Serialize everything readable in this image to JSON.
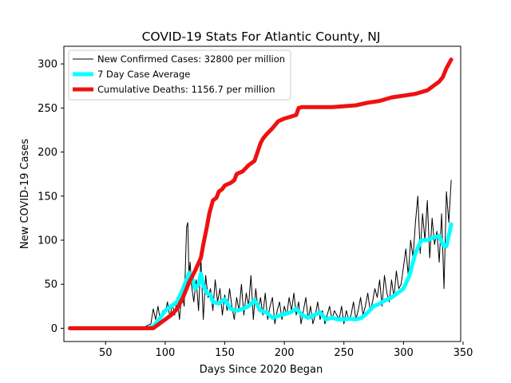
{
  "chart_data": {
    "type": "line",
    "title": "COVID-19 Stats For Atlantic County, NJ",
    "xlabel": "Days Since 2020 Began",
    "ylabel": "New COVID-19 Cases",
    "xlim": [
      15,
      348
    ],
    "ylim": [
      -15,
      320
    ],
    "xticks": [
      50,
      100,
      150,
      200,
      250,
      300,
      350
    ],
    "yticks": [
      0,
      50,
      100,
      150,
      200,
      250,
      300
    ],
    "grid": false,
    "legend_position": "top-left",
    "series": [
      {
        "name": "New Confirmed Cases: 32800 per million",
        "color": "#000000",
        "line_width": 1,
        "x": [
          20,
          70,
          80,
          88,
          90,
          92,
          94,
          96,
          98,
          100,
          102,
          104,
          106,
          108,
          110,
          112,
          114,
          116,
          118,
          119,
          120,
          121,
          122,
          124,
          126,
          128,
          130,
          132,
          134,
          136,
          138,
          140,
          142,
          144,
          146,
          148,
          150,
          152,
          154,
          156,
          158,
          160,
          162,
          164,
          166,
          168,
          170,
          172,
          174,
          176,
          178,
          180,
          182,
          184,
          186,
          188,
          190,
          192,
          194,
          196,
          198,
          200,
          202,
          204,
          206,
          208,
          210,
          212,
          214,
          216,
          218,
          220,
          222,
          224,
          226,
          228,
          230,
          232,
          234,
          236,
          238,
          240,
          242,
          244,
          246,
          248,
          250,
          252,
          254,
          256,
          258,
          260,
          262,
          264,
          266,
          268,
          270,
          272,
          274,
          276,
          278,
          280,
          282,
          284,
          286,
          288,
          290,
          292,
          294,
          296,
          298,
          300,
          302,
          304,
          306,
          308,
          310,
          312,
          314,
          316,
          318,
          320,
          322,
          324,
          326,
          328,
          330,
          332,
          334,
          336,
          338,
          340
        ],
        "y": [
          0,
          0,
          0,
          5,
          22,
          10,
          25,
          8,
          20,
          18,
          30,
          12,
          28,
          15,
          35,
          10,
          40,
          25,
          115,
          120,
          60,
          75,
          50,
          30,
          55,
          20,
          80,
          10,
          60,
          35,
          45,
          20,
          55,
          30,
          45,
          15,
          38,
          20,
          45,
          25,
          10,
          35,
          20,
          50,
          15,
          40,
          25,
          60,
          10,
          45,
          20,
          35,
          15,
          40,
          10,
          25,
          35,
          5,
          20,
          30,
          10,
          25,
          15,
          35,
          20,
          40,
          15,
          30,
          5,
          20,
          35,
          10,
          25,
          5,
          15,
          30,
          10,
          20,
          5,
          15,
          25,
          10,
          20,
          15,
          10,
          25,
          5,
          20,
          10,
          15,
          30,
          10,
          20,
          35,
          15,
          25,
          40,
          20,
          30,
          45,
          35,
          55,
          25,
          60,
          40,
          30,
          55,
          35,
          65,
          45,
          50,
          70,
          90,
          60,
          100,
          80,
          120,
          150,
          85,
          130,
          100,
          145,
          80,
          125,
          95,
          110,
          75,
          130,
          45,
          155,
          120,
          168
        ],
        "role": "new_cases"
      },
      {
        "name": "7 Day Case Average",
        "color": "#00ffff",
        "line_width": 5,
        "x": [
          20,
          85,
          90,
          95,
          100,
          105,
          110,
          115,
          118,
          120,
          122,
          125,
          128,
          130,
          132,
          135,
          138,
          140,
          145,
          150,
          155,
          160,
          165,
          170,
          175,
          180,
          185,
          190,
          195,
          200,
          205,
          210,
          215,
          220,
          225,
          230,
          235,
          240,
          245,
          250,
          255,
          260,
          265,
          270,
          275,
          280,
          285,
          290,
          295,
          300,
          305,
          310,
          315,
          320,
          325,
          330,
          333,
          336,
          338,
          340
        ],
        "y": [
          0,
          0,
          2,
          10,
          20,
          25,
          30,
          45,
          55,
          63,
          60,
          45,
          50,
          62,
          48,
          40,
          38,
          30,
          28,
          33,
          22,
          20,
          22,
          25,
          32,
          20,
          18,
          12,
          14,
          16,
          18,
          22,
          15,
          12,
          15,
          18,
          10,
          12,
          10,
          10,
          11,
          10,
          12,
          18,
          25,
          28,
          32,
          35,
          40,
          45,
          60,
          85,
          100,
          100,
          103,
          105,
          95,
          93,
          105,
          118
        ],
        "role": "avg"
      },
      {
        "name": "Cumulative Deaths: 1156.7 per million",
        "color": "#ee1111",
        "line_width": 5,
        "x": [
          20,
          85,
          90,
          95,
          100,
          105,
          110,
          115,
          118,
          120,
          125,
          130,
          132,
          135,
          137,
          140,
          143,
          145,
          148,
          150,
          155,
          158,
          160,
          165,
          170,
          175,
          180,
          182,
          185,
          190,
          195,
          200,
          205,
          210,
          212,
          215,
          220,
          225,
          230,
          240,
          250,
          260,
          270,
          280,
          290,
          300,
          310,
          320,
          330,
          333,
          336,
          338,
          340
        ],
        "y": [
          0,
          0,
          0,
          5,
          10,
          15,
          22,
          35,
          45,
          52,
          65,
          80,
          95,
          115,
          130,
          145,
          148,
          155,
          158,
          162,
          165,
          168,
          175,
          178,
          185,
          190,
          210,
          215,
          220,
          227,
          235,
          238,
          240,
          242,
          250,
          251,
          251,
          251,
          251,
          251,
          252,
          253,
          256,
          258,
          262,
          264,
          266,
          270,
          280,
          285,
          295,
          300,
          305
        ],
        "role": "deaths"
      }
    ]
  }
}
